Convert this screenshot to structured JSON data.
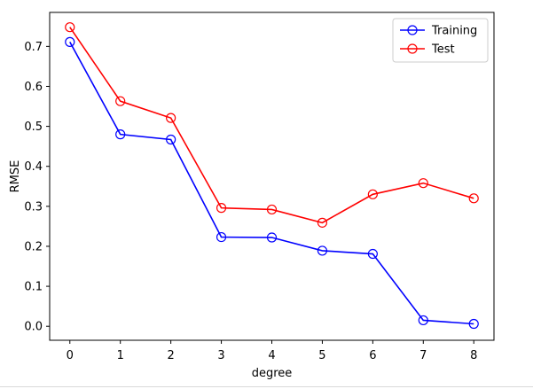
{
  "chart_data": {
    "type": "line",
    "title": "",
    "xlabel": "degree",
    "ylabel": "RMSE",
    "x": [
      0,
      1,
      2,
      3,
      4,
      5,
      6,
      7,
      8
    ],
    "xlim": [
      -0.4,
      8.4
    ],
    "ylim": [
      -0.035,
      0.785
    ],
    "xticks": [
      0,
      1,
      2,
      3,
      4,
      5,
      6,
      7,
      8
    ],
    "yticks": [
      0.0,
      0.1,
      0.2,
      0.3,
      0.4,
      0.5,
      0.6,
      0.7
    ],
    "ytick_labels": [
      "0.0",
      "0.1",
      "0.2",
      "0.3",
      "0.4",
      "0.5",
      "0.6",
      "0.7"
    ],
    "grid": false,
    "legend": "top-right",
    "marker": "open-circle",
    "series": [
      {
        "name": "Training",
        "color": "#0000ff",
        "values": [
          0.711,
          0.48,
          0.467,
          0.223,
          0.222,
          0.189,
          0.181,
          0.015,
          0.006
        ]
      },
      {
        "name": "Test",
        "color": "#ff0000",
        "values": [
          0.748,
          0.563,
          0.521,
          0.296,
          0.292,
          0.259,
          0.33,
          0.358,
          0.32
        ]
      }
    ]
  }
}
